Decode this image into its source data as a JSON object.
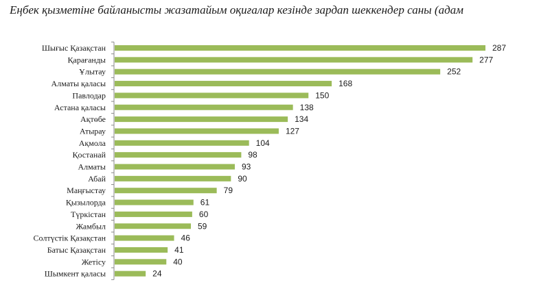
{
  "chart_data": {
    "type": "bar",
    "orientation": "horizontal",
    "title": "Еңбек қызметіне байланысты жазатайым оқиғалар кезінде зардап шеккендер саны (адам",
    "xlabel": "",
    "ylabel": "",
    "categories": [
      "Шығыс  Қазақстан",
      "Қарағанды",
      "Ұлытау",
      "Алматы қаласы",
      "Павлодар",
      "Астана қаласы",
      "Ақтөбе",
      "Атырау",
      "Ақмола",
      "Қостанай",
      "Алматы",
      "Абай",
      "Маңғыстау",
      "Қызылорда",
      "Түркістан",
      "Жамбыл",
      "Солтүстік Қазақстан",
      "Батыс Қазақстан",
      "Жетісу",
      "Шымкент қаласы"
    ],
    "values": [
      287,
      277,
      252,
      168,
      150,
      138,
      134,
      127,
      104,
      98,
      93,
      90,
      79,
      61,
      60,
      59,
      46,
      41,
      40,
      24
    ],
    "xlim": [
      0,
      300
    ],
    "grid": false,
    "legend": "none",
    "bar_color": "#9bbb59",
    "axis_color": "#888888"
  }
}
